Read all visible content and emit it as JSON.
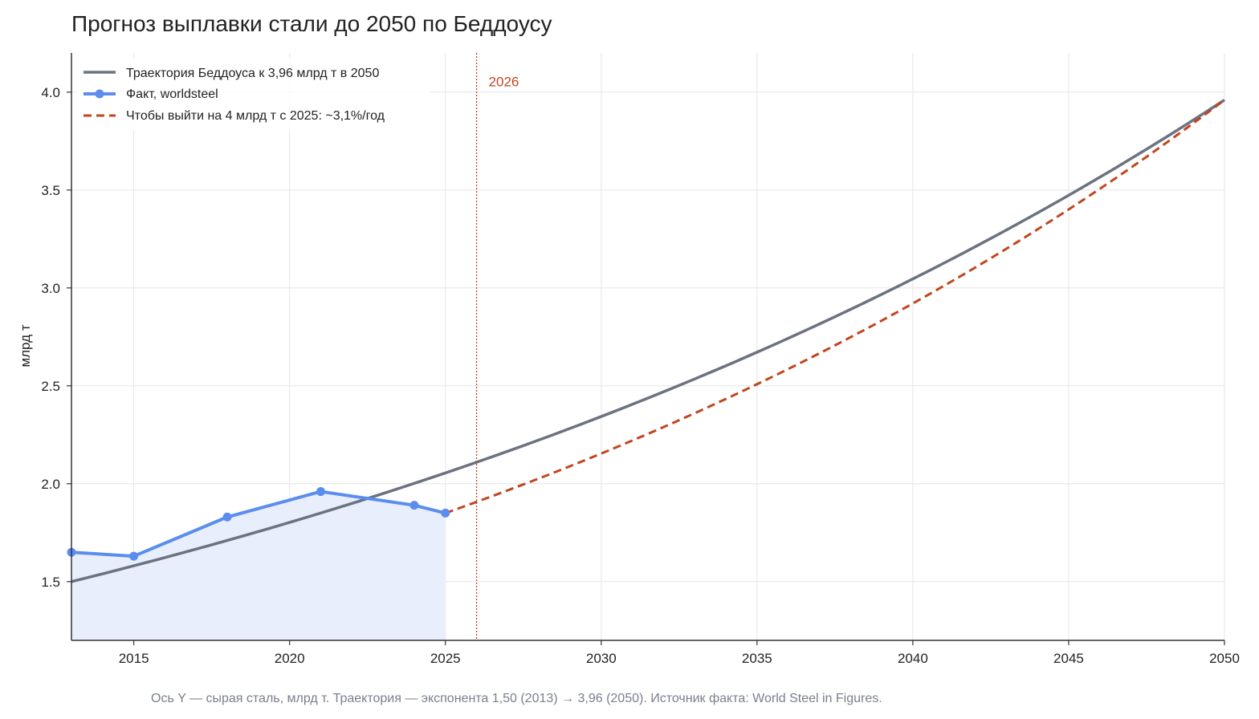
{
  "colors": {
    "trajectory": "#6b7280",
    "actual": "#5b8dee",
    "actual_fill": "#e8eefb",
    "required": "#c2451e",
    "marker_line": "#c2451e",
    "grid": "#e6e6e6",
    "axis": "#333333"
  },
  "chart_data": {
    "type": "line",
    "title": "Прогноз выплавки стали до 2050 по Беддоусу",
    "xlabel": "",
    "ylabel": "млрд т",
    "xlim": [
      2013,
      2050
    ],
    "ylim": [
      1.2,
      4.2
    ],
    "grid": true,
    "legend_position": "top-left",
    "x_ticks": [
      2015,
      2020,
      2025,
      2030,
      2035,
      2040,
      2045,
      2050
    ],
    "y_ticks": [
      1.5,
      2.0,
      2.5,
      3.0,
      3.5,
      4.0
    ],
    "x_tick_labels": [
      "2015",
      "2020",
      "2025",
      "2030",
      "2035",
      "2040",
      "2045",
      "2050"
    ],
    "y_tick_labels": [
      "1.5",
      "2.0",
      "2.5",
      "3.0",
      "3.5",
      "4.0"
    ],
    "series": [
      {
        "name": "Траектория Беддоуса к 3,96 млрд т в 2050",
        "kind": "exponential",
        "start": [
          2013,
          1.5
        ],
        "end": [
          2050,
          3.96
        ]
      },
      {
        "name": "Факт, worldsteel",
        "kind": "points",
        "x": [
          2013,
          2015,
          2018,
          2021,
          2024,
          2025
        ],
        "y": [
          1.65,
          1.63,
          1.83,
          1.96,
          1.89,
          1.85
        ]
      },
      {
        "name": "Чтобы выйти на 4 млрд т с 2025: ~3,1%/год",
        "kind": "exponential",
        "start": [
          2025,
          1.85
        ],
        "end": [
          2050,
          3.96
        ]
      }
    ],
    "vertical_marker": {
      "x": 2026,
      "label": "2026"
    }
  },
  "footnote": "Ось Y — сырая сталь, млрд т. Траектория — экспонента 1,50 (2013) → 3,96 (2050). Источник факта: World Steel in Figures."
}
